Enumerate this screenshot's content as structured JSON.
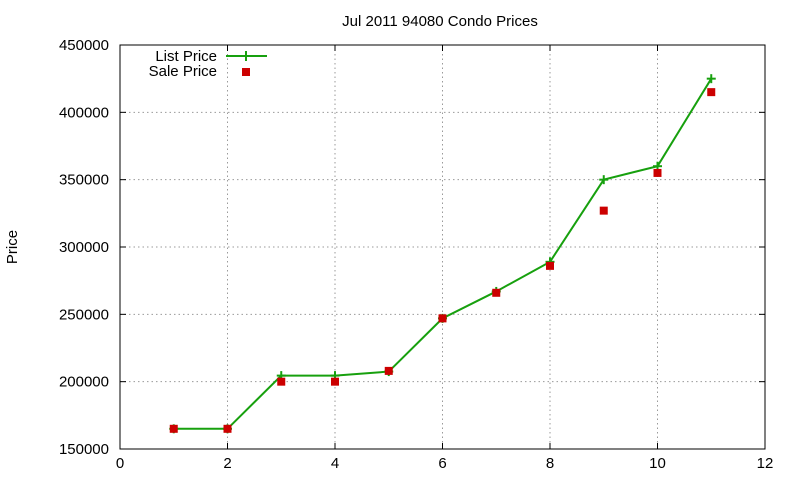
{
  "chart_data": {
    "type": "line",
    "title": "Jul 2011 94080 Condo Prices",
    "xlabel": "",
    "ylabel": "Price",
    "xlim": [
      0,
      12
    ],
    "ylim": [
      150000,
      450000
    ],
    "xticks": [
      0,
      2,
      4,
      6,
      8,
      10,
      12
    ],
    "yticks": [
      150000,
      200000,
      250000,
      300000,
      350000,
      400000,
      450000
    ],
    "grid": true,
    "legend_position": "top-left",
    "series": [
      {
        "name": "List Price",
        "style": "line+plus-markers",
        "color": "#17a00e",
        "x": [
          1,
          2,
          3,
          4,
          5,
          6,
          7,
          8,
          9,
          10,
          11
        ],
        "y": [
          165000,
          165000,
          204500,
          204500,
          207500,
          247000,
          267000,
          289000,
          350000,
          360000,
          425000
        ]
      },
      {
        "name": "Sale Price",
        "style": "square-markers",
        "color": "#cc0000",
        "x": [
          1,
          2,
          3,
          4,
          5,
          6,
          7,
          8,
          9,
          10,
          11
        ],
        "y": [
          165000,
          165000,
          200000,
          200000,
          208000,
          247000,
          266000,
          286000,
          327000,
          355000,
          415000
        ]
      }
    ]
  }
}
